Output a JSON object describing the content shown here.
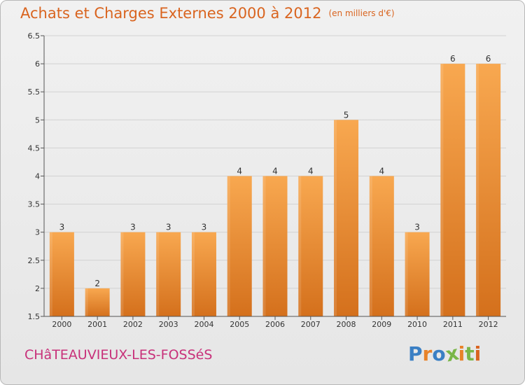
{
  "title": "Achats et Charges Externes 2000 à 2012",
  "unit": "(en milliers d'€)",
  "commune": "CHâTEAUVIEUX-LES-FOSSéS",
  "brand": {
    "text": "Proxiti",
    "letter_colors": [
      "#3a7fc4",
      "#e8832a",
      "#3a7fc4",
      "#7ab648",
      "#e8832a",
      "#7ab648",
      "#d9641f"
    ]
  },
  "colors": {
    "bar_top": "#f8a850",
    "bar_bottom": "#d4701c",
    "title": "#d9641f",
    "commune": "#c8317a"
  },
  "chart_data": {
    "type": "bar",
    "title": "Achats et Charges Externes 2000 à 2012",
    "xlabel": "",
    "ylabel": "",
    "categories": [
      "2000",
      "2001",
      "2002",
      "2003",
      "2004",
      "2005",
      "2006",
      "2007",
      "2008",
      "2009",
      "2010",
      "2011",
      "2012"
    ],
    "values": [
      3,
      2,
      3,
      3,
      3,
      4,
      4,
      4,
      5,
      4,
      3,
      6,
      6
    ],
    "labels": [
      "3",
      "2",
      "3",
      "3",
      "3",
      "4",
      "4",
      "4",
      "5",
      "4",
      "3",
      "6",
      "6"
    ],
    "ylim": [
      1.5,
      6.5
    ],
    "yticks": [
      1.5,
      2,
      2.5,
      3,
      3.5,
      4,
      4.5,
      5,
      5.5,
      6,
      6.5
    ],
    "ytick_labels": [
      "1.5",
      "2",
      "2.5",
      "3",
      "3.5",
      "4",
      "4.5",
      "5",
      "5.5",
      "6",
      "6.5"
    ],
    "grid": true
  }
}
